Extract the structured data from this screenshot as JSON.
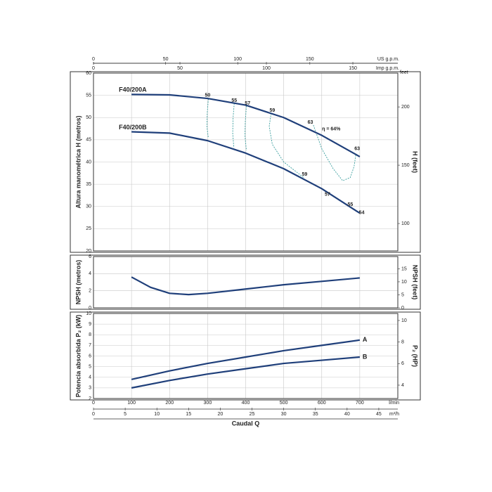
{
  "x_axis": {
    "label": "Caudal Q",
    "unit": "l/min",
    "xlim": [
      0,
      800
    ],
    "xticks": [
      0,
      100,
      200,
      300,
      400,
      500,
      600,
      700
    ],
    "secondary": [
      {
        "unit": "US g.p.m.",
        "xlim": [
          0,
          211
        ],
        "xticks": [
          0,
          50,
          100,
          150
        ]
      },
      {
        "unit": "Imp g.p.m.",
        "xlim": [
          0,
          176
        ],
        "xticks": [
          0,
          50,
          100,
          150
        ]
      },
      {
        "unit": "m³/h",
        "xlim": [
          0,
          48
        ],
        "xticks": [
          0,
          5,
          10,
          15,
          20,
          25,
          30,
          35,
          40,
          45
        ]
      }
    ]
  },
  "chart_data": [
    {
      "type": "line",
      "y_label": "Altura manométrica H (metros)",
      "y2_label": "H (feet)",
      "y2_unit": "feet",
      "ylim": [
        20,
        60
      ],
      "yticks": [
        20,
        25,
        30,
        35,
        40,
        45,
        50,
        55,
        60
      ],
      "y2lim": [
        76.5,
        229
      ],
      "y2ticks": [
        100,
        150,
        200
      ],
      "grid": true,
      "x": [
        100,
        200,
        300,
        400,
        500,
        600,
        700
      ],
      "series": [
        {
          "name": "F40/200A",
          "color": "#1f3f7a",
          "values": [
            55.2,
            55.1,
            54.3,
            52.8,
            50,
            46,
            41.2
          ]
        },
        {
          "name": "F40/200B",
          "color": "#1f3f7a",
          "values": [
            46.8,
            46.5,
            44.8,
            42,
            38.5,
            34,
            28.5
          ]
        }
      ],
      "efficiency_color": "#3a9e9e",
      "efficiency_curves": [
        {
          "x": [
            302,
            299,
            298,
            302
          ],
          "y": [
            54.2,
            51,
            48,
            45.4
          ]
        },
        {
          "x": [
            370,
            367,
            366,
            369
          ],
          "y": [
            53.2,
            50,
            46.5,
            43.2
          ]
        },
        {
          "x": [
            402,
            399,
            398,
            402
          ],
          "y": [
            52.6,
            49,
            46,
            42.6
          ]
        },
        {
          "x": [
            467,
            462,
            470,
            500,
            554
          ],
          "y": [
            51,
            48,
            44,
            40,
            36.4
          ]
        },
        {
          "x": [
            578,
            600,
            630,
            655,
            675,
            685,
            690
          ],
          "y": [
            48.3,
            43,
            38.5,
            35.8,
            36.5,
            39,
            41.8
          ]
        }
      ],
      "efficiency_labels": [
        {
          "label": "50",
          "x": 300,
          "y": 55
        },
        {
          "label": "55",
          "x": 370,
          "y": 53.8
        },
        {
          "label": "57",
          "x": 405,
          "y": 53.2
        },
        {
          "label": "59",
          "x": 470,
          "y": 51.6
        },
        {
          "label": "63",
          "x": 570,
          "y": 48.9
        },
        {
          "label": "η = 64%",
          "x": 625,
          "y": 47.4
        },
        {
          "label": "63",
          "x": 693,
          "y": 43
        },
        {
          "label": "59",
          "x": 555,
          "y": 37.2
        },
        {
          "label": "57",
          "x": 615,
          "y": 32.7
        },
        {
          "label": "55",
          "x": 675,
          "y": 30.4
        },
        {
          "label": "54",
          "x": 705,
          "y": 28.6
        }
      ]
    },
    {
      "type": "line",
      "y_label": "NPSH (metros)",
      "y2_label": "NPSH (feet)",
      "ylim": [
        0,
        6
      ],
      "yticks": [
        0,
        2,
        4,
        6
      ],
      "y2lim": [
        0,
        19.7
      ],
      "y2ticks": [
        0,
        5,
        10,
        15
      ],
      "grid": true,
      "x": [
        100,
        150,
        200,
        250,
        300,
        400,
        500,
        600,
        700
      ],
      "series": [
        {
          "color": "#1f3f7a",
          "values": [
            3.6,
            2.4,
            1.7,
            1.55,
            1.7,
            2.2,
            2.7,
            3.1,
            3.5
          ]
        }
      ]
    },
    {
      "type": "line",
      "y_label": "Potencia absorbida P₂ (kW)",
      "y2_label": "P₂ (HP)",
      "ylim": [
        2,
        10
      ],
      "yticks": [
        2,
        3,
        4,
        5,
        6,
        7,
        8,
        9,
        10
      ],
      "y2lim": [
        2.76,
        10.65
      ],
      "y2ticks": [
        4,
        6,
        8,
        10
      ],
      "grid": true,
      "x": [
        100,
        200,
        300,
        400,
        500,
        600,
        700
      ],
      "series": [
        {
          "name": "A",
          "color": "#1f3f7a",
          "values": [
            3.8,
            4.6,
            5.3,
            5.9,
            6.5,
            7.0,
            7.5
          ]
        },
        {
          "name": "B",
          "color": "#1f3f7a",
          "values": [
            3.0,
            3.7,
            4.3,
            4.8,
            5.3,
            5.6,
            5.9
          ]
        }
      ]
    }
  ]
}
